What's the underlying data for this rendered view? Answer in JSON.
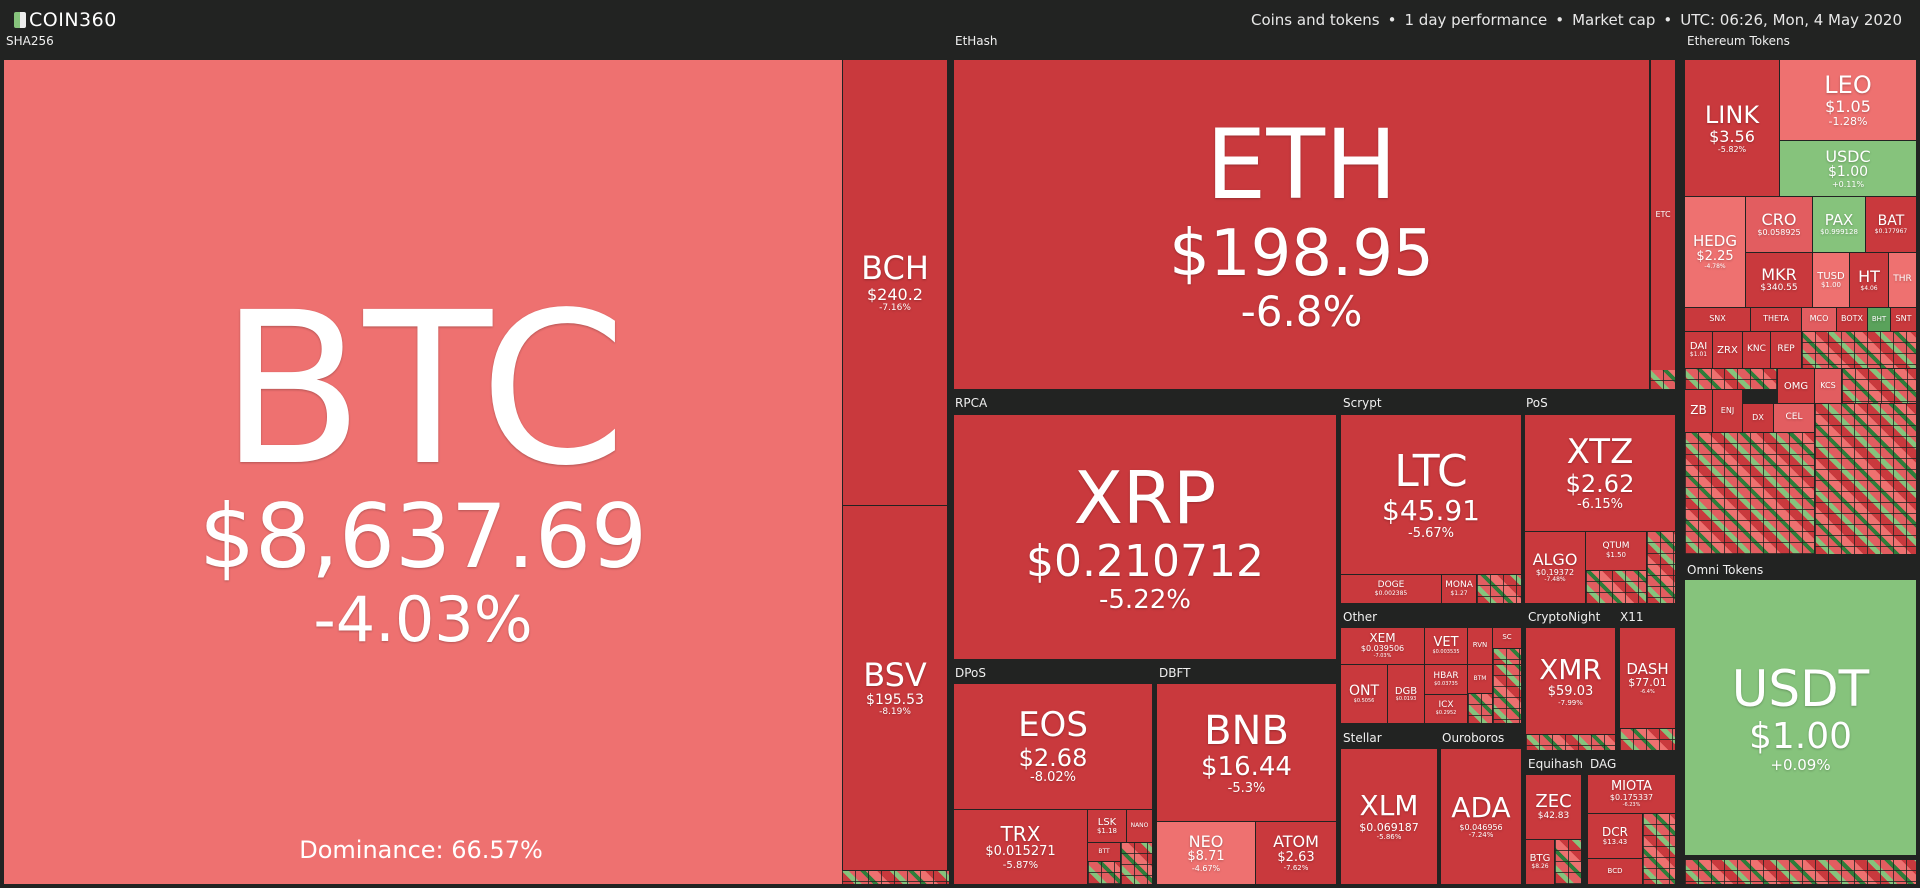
{
  "header": {
    "logo": "COIN360",
    "coins": "Coins and tokens",
    "period": "1 day performance",
    "metric": "Market cap",
    "time": "UTC: 06:26, Mon, 4 May 2020",
    "sep": "•"
  },
  "groups": {
    "sha256": "SHA256",
    "ethash": "EtHash",
    "eth_tokens": "Ethereum Tokens",
    "rpca": "RPCA",
    "scrypt": "Scrypt",
    "pos": "PoS",
    "dpos": "DPoS",
    "dbft": "DBFT",
    "other": "Other",
    "cryptonight": "CryptoNight",
    "x11": "X11",
    "stellar": "Stellar",
    "ouroboros": "Ouroboros",
    "equihash": "Equihash",
    "dag": "DAG",
    "omni": "Omni Tokens"
  },
  "dominance": "Dominance: 66.57%",
  "coins": {
    "btc": {
      "sym": "BTC",
      "price": "$8,637.69",
      "chg": "-4.03%",
      "color": "#ee7170"
    },
    "bch": {
      "sym": "BCH",
      "price": "$240.2",
      "chg": "-7.16%"
    },
    "bsv": {
      "sym": "BSV",
      "price": "$195.53",
      "chg": "-8.19%"
    },
    "eth": {
      "sym": "ETH",
      "price": "$198.95",
      "chg": "-6.8%"
    },
    "etc": {
      "sym": "ETC"
    },
    "xrp": {
      "sym": "XRP",
      "price": "$0.210712",
      "chg": "-5.22%"
    },
    "ltc": {
      "sym": "LTC",
      "price": "$45.91",
      "chg": "-5.67%"
    },
    "doge": {
      "sym": "DOGE",
      "price": "$0.002385"
    },
    "mona": {
      "sym": "MONA",
      "price": "$1.27"
    },
    "xtz": {
      "sym": "XTZ",
      "price": "$2.62",
      "chg": "-6.15%"
    },
    "algo": {
      "sym": "ALGO",
      "price": "$0.19372",
      "chg": "-7.48%"
    },
    "qtum": {
      "sym": "QTUM",
      "price": "$1.50"
    },
    "eos": {
      "sym": "EOS",
      "price": "$2.68",
      "chg": "-8.02%"
    },
    "trx": {
      "sym": "TRX",
      "price": "$0.015271",
      "chg": "-5.87%"
    },
    "lsk": {
      "sym": "LSK",
      "price": "$1.18"
    },
    "btt": {
      "sym": "BTT"
    },
    "nano": {
      "sym": "NANO"
    },
    "bnb": {
      "sym": "BNB",
      "price": "$16.44",
      "chg": "-5.3%"
    },
    "neo": {
      "sym": "NEO",
      "price": "$8.71",
      "chg": "-4.67%"
    },
    "atom": {
      "sym": "ATOM",
      "price": "$2.63",
      "chg": "-7.62%"
    },
    "xem": {
      "sym": "XEM",
      "price": "$0.039506",
      "chg": "-7.03%"
    },
    "vet": {
      "sym": "VET",
      "price": "$0.003535"
    },
    "rvn": {
      "sym": "RVN"
    },
    "sc": {
      "sym": "SC"
    },
    "ont": {
      "sym": "ONT",
      "price": "$0.5056"
    },
    "dgb": {
      "sym": "DGB",
      "price": "$0.0193"
    },
    "hbar": {
      "sym": "HBAR",
      "price": "$0.03735"
    },
    "icx": {
      "sym": "ICX",
      "price": "$0.2952"
    },
    "btm": {
      "sym": "BTM"
    },
    "xmr": {
      "sym": "XMR",
      "price": "$59.03",
      "chg": "-7.99%"
    },
    "dash": {
      "sym": "DASH",
      "price": "$77.01",
      "chg": "-6.4%"
    },
    "xlm": {
      "sym": "XLM",
      "price": "$0.069187",
      "chg": "-5.86%"
    },
    "ada": {
      "sym": "ADA",
      "price": "$0.046956",
      "chg": "-7.24%"
    },
    "zec": {
      "sym": "ZEC",
      "price": "$42.83"
    },
    "btg": {
      "sym": "BTG",
      "price": "$8.26"
    },
    "miota": {
      "sym": "MIOTA",
      "price": "$0.175337",
      "chg": "-6.23%"
    },
    "dcr": {
      "sym": "DCR",
      "price": "$13.43"
    },
    "bcd": {
      "sym": "BCD"
    },
    "link": {
      "sym": "LINK",
      "price": "$3.56",
      "chg": "-5.82%"
    },
    "leo": {
      "sym": "LEO",
      "price": "$1.05",
      "chg": "-1.28%"
    },
    "usdc": {
      "sym": "USDC",
      "price": "$1.00",
      "chg": "+0.11%"
    },
    "hedg": {
      "sym": "HEDG",
      "price": "$2.25",
      "chg": "-4.78%"
    },
    "cro": {
      "sym": "CRO",
      "price": "$0.058925"
    },
    "pax": {
      "sym": "PAX",
      "price": "$0.999128"
    },
    "bat": {
      "sym": "BAT",
      "price": "$0.177967"
    },
    "mkr": {
      "sym": "MKR",
      "price": "$340.55"
    },
    "tusd": {
      "sym": "TUSD",
      "price": "$1.00"
    },
    "ht": {
      "sym": "HT",
      "price": "$4.06"
    },
    "thr": {
      "sym": "THR"
    },
    "snx": {
      "sym": "SNX"
    },
    "theta": {
      "sym": "THETA"
    },
    "mco": {
      "sym": "MCO"
    },
    "botx": {
      "sym": "BOTX"
    },
    "bht": {
      "sym": "BHT"
    },
    "snt": {
      "sym": "SNT"
    },
    "dai": {
      "sym": "DAI",
      "price": "$1.01"
    },
    "zrx": {
      "sym": "ZRX"
    },
    "knc": {
      "sym": "KNC"
    },
    "rep": {
      "sym": "REP"
    },
    "omg": {
      "sym": "OMG"
    },
    "kcs": {
      "sym": "KCS"
    },
    "zb": {
      "sym": "ZB"
    },
    "enj": {
      "sym": "ENJ"
    },
    "dx": {
      "sym": "DX"
    },
    "cel": {
      "sym": "CEL"
    },
    "usdt": {
      "sym": "USDT",
      "price": "$1.00",
      "chg": "+0.09%"
    }
  },
  "colors": {
    "bg": "#222322",
    "light_red": "#ee7170",
    "red": "#c9393d",
    "light_green": "#86c37c",
    "green": "#2e7d3a"
  }
}
